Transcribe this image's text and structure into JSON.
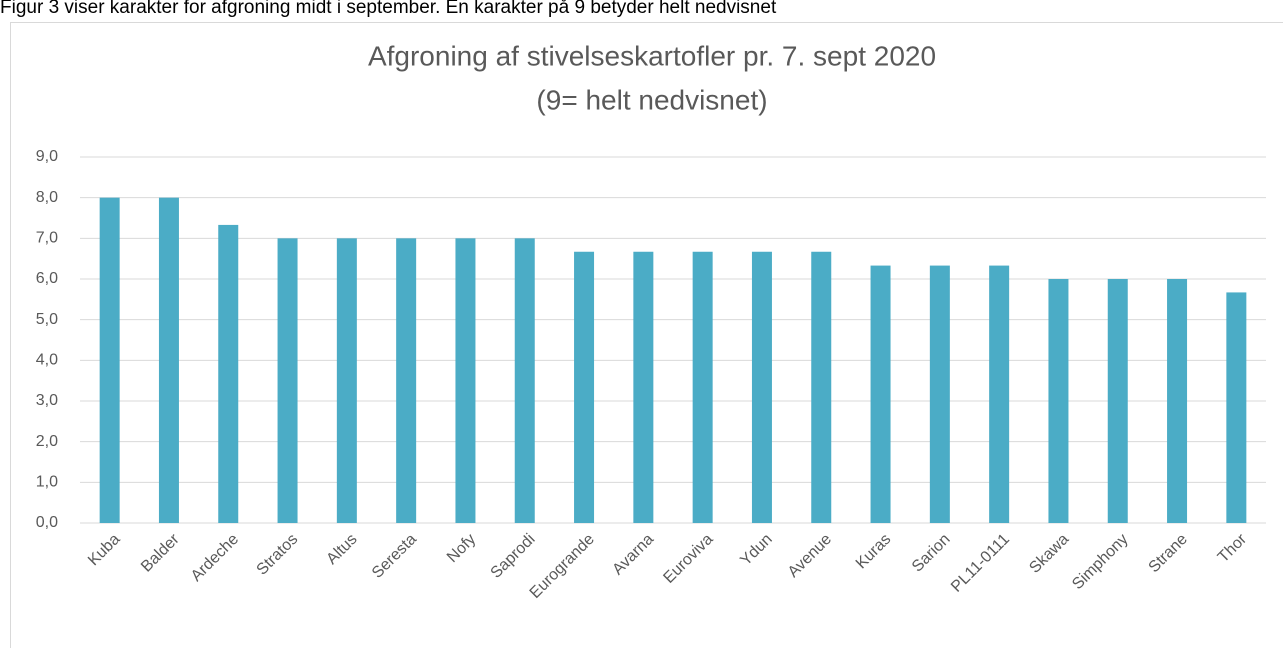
{
  "caption": "Figur 3 viser karakter for afgroning midt i september. En karakter på 9 betyder helt nedvisnet",
  "chart_data": {
    "type": "bar",
    "title": "Afgroning af stivelseskartofler pr. 7. sept 2020",
    "subtitle": "(9= helt nedvisnet)",
    "categories": [
      "Kuba",
      "Balder",
      "Ardeche",
      "Stratos",
      "Altus",
      "Seresta",
      "Nofy",
      "Saprodi",
      "Eurogrande",
      "Avarna",
      "Euroviva",
      "Ydun",
      "Avenue",
      "Kuras",
      "Sarion",
      "PL11-0111",
      "Skawa",
      "Simphony",
      "Strane",
      "Thor"
    ],
    "values": [
      8.0,
      8.0,
      7.33,
      7.0,
      7.0,
      7.0,
      7.0,
      7.0,
      6.67,
      6.67,
      6.67,
      6.67,
      6.67,
      6.33,
      6.33,
      6.33,
      6.0,
      6.0,
      6.0,
      5.67
    ],
    "color": "#4bacc6",
    "ylim": [
      0,
      9
    ],
    "yticks": [
      {
        "value": 0,
        "label": "0,0"
      },
      {
        "value": 1,
        "label": "1,0"
      },
      {
        "value": 2,
        "label": "2,0"
      },
      {
        "value": 3,
        "label": "3,0"
      },
      {
        "value": 4,
        "label": "4,0"
      },
      {
        "value": 5,
        "label": "5,0"
      },
      {
        "value": 6,
        "label": "6,0"
      },
      {
        "value": 7,
        "label": "7,0"
      },
      {
        "value": 8,
        "label": "8,0"
      },
      {
        "value": 9,
        "label": "9,0"
      }
    ],
    "grid": true
  }
}
